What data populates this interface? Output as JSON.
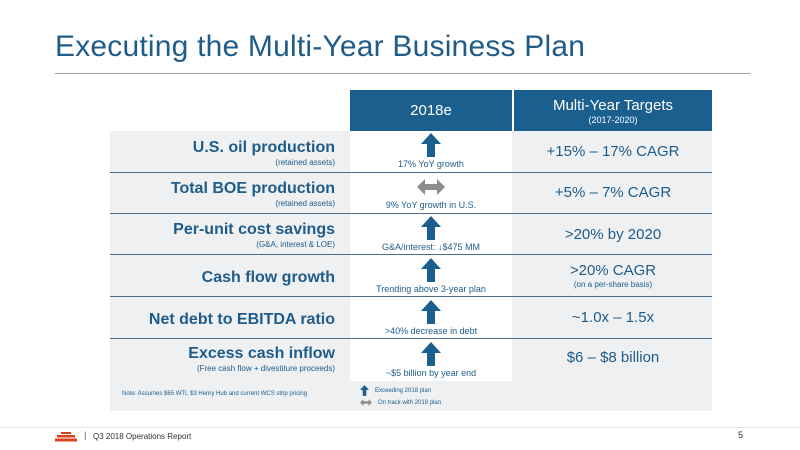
{
  "title": "Executing the Multi-Year Business Plan",
  "table": {
    "header_2018": "2018e",
    "header_targets": "Multi-Year Targets",
    "header_targets_sub": "(2017-2020)",
    "rows": [
      {
        "label": "U.S. oil production",
        "sublabel": "(retained assets)",
        "arrow": "up-arrow-icon",
        "status": "17% YoY growth",
        "target": "+15% – 17% CAGR",
        "target_sub": ""
      },
      {
        "label": "Total BOE production",
        "sublabel": "(retained assets)",
        "arrow": "left-right-arrow-icon",
        "status": "9% YoY growth in U.S.",
        "target": "+5% – 7% CAGR",
        "target_sub": ""
      },
      {
        "label": "Per-unit cost savings",
        "sublabel": "(G&A, interest & LOE)",
        "arrow": "up-arrow-icon",
        "status": "G&A/interest: ↓$475 MM",
        "target": ">20% by 2020",
        "target_sub": ""
      },
      {
        "label": "Cash flow growth",
        "sublabel": "",
        "arrow": "up-arrow-icon",
        "status": "Trending above 3-year plan",
        "target": ">20% CAGR",
        "target_sub": "(on a per-share basis)"
      },
      {
        "label": "Net debt to EBITDA ratio",
        "sublabel": "",
        "arrow": "up-arrow-icon",
        "status": ">40% decrease in debt",
        "target": "~1.0x – 1.5x",
        "target_sub": ""
      },
      {
        "label": "Excess cash inflow",
        "sublabel": "(Free cash flow + divestiture proceeds)",
        "arrow": "up-arrow-icon",
        "status": "~$5 billion by year end",
        "target": "$6 – $8 billion",
        "target_sub": ""
      }
    ]
  },
  "note": "Note: Assumes $65 WTI, $3 Henry Hub and current WCS strip pricing",
  "legend": {
    "exceeding": "Exceeding 2018 plan",
    "on_track": "On track with 2018 plan"
  },
  "footer": {
    "report": "Q3 2018 Operations Report",
    "page": "5"
  },
  "colors": {
    "accent": "#1b5f8f",
    "panel": "#eef0f2",
    "neutral_arrow": "#8c8c8c",
    "logo": "#d9421c"
  }
}
